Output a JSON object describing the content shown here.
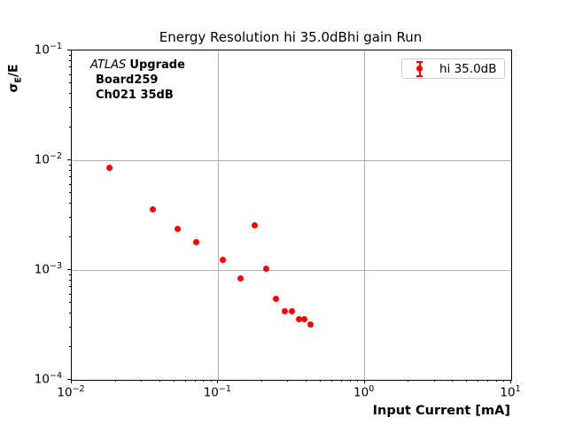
{
  "figure": {
    "background_color": "#ffffff",
    "text_color": "#000000"
  },
  "annotation": {
    "line1_italic": "ATLAS",
    "line1_bold": "Upgrade",
    "line2": "Board259",
    "line3": "Ch021 35dB"
  },
  "chart_data": {
    "type": "scatter",
    "title": "Energy Resolution hi 35.0dBhi gain Run",
    "xlabel": "Input Current [mA]",
    "ylabel": "σE/E",
    "ylabel_parts": {
      "base": "σ",
      "sub": "E",
      "rest": "/E"
    },
    "xscale": "log",
    "yscale": "log",
    "xlim": [
      0.01,
      10
    ],
    "ylim": [
      0.0001,
      0.1
    ],
    "x_tick_exponents": [
      -2,
      -1,
      0,
      1
    ],
    "y_tick_exponents": [
      -1,
      -2,
      -3,
      -4
    ],
    "grid": true,
    "grid_color": "#b0b0b0",
    "legend_position": "upper right",
    "series": [
      {
        "name": "hi 35.0dB",
        "color": "#ff0000",
        "marker": "errorbar-dot",
        "x": [
          0.018,
          0.036,
          0.053,
          0.071,
          0.107,
          0.142,
          0.178,
          0.212,
          0.247,
          0.284,
          0.318,
          0.356,
          0.386,
          0.425
        ],
        "y": [
          0.0085,
          0.0036,
          0.00235,
          0.00178,
          0.00124,
          0.00084,
          0.00255,
          0.00102,
          0.00055,
          0.00042,
          0.00042,
          0.00036,
          0.00036,
          0.00032
        ]
      }
    ]
  }
}
